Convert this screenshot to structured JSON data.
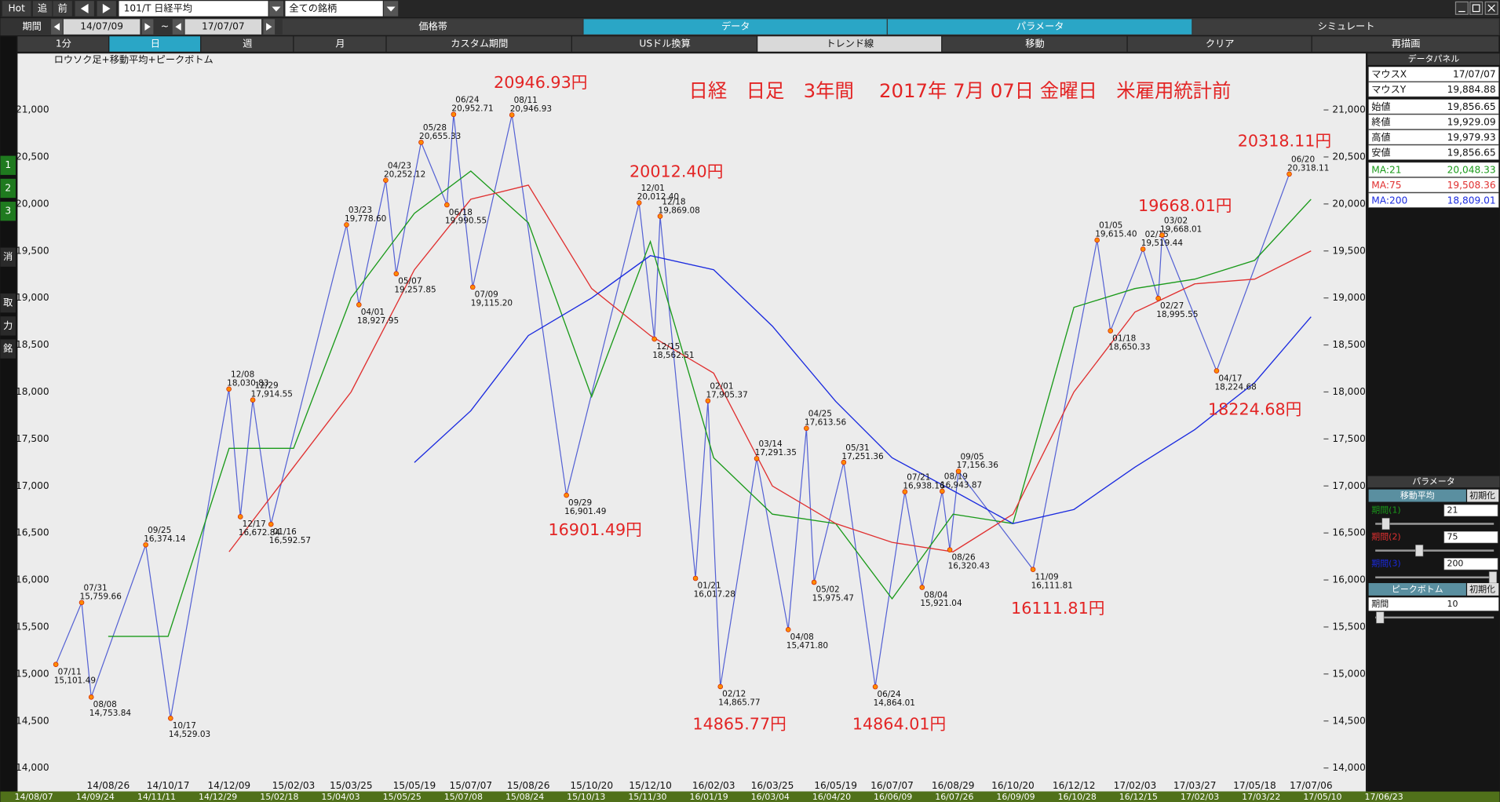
{
  "toolbar": {
    "buttons": [
      "Hot",
      "追",
      "前"
    ],
    "symbol": "101/T 日経平均",
    "universe": "全ての銘柄"
  },
  "period": {
    "label": "期間",
    "from": "14/07/09",
    "sep": "~",
    "to": "17/07/07"
  },
  "tabs": [
    "価格帯",
    "データ",
    "パラメータ",
    "シミュレート"
  ],
  "buttons": [
    "1分",
    "日",
    "週",
    "月",
    "カスタム期間",
    "USドル換算",
    "トレンド線",
    "移動",
    "クリア",
    "再描画"
  ],
  "sidebar": [
    "1",
    "2",
    "3",
    "消",
    "取",
    "力",
    "銘"
  ],
  "chart_data": {
    "type": "line",
    "label": "ロウソク足+移動平均+ピークボトム",
    "title": "日経　日足　3年間　 2017年 7月 07日 金曜日　米雇用統計前",
    "categories": [
      "14/08/26",
      "14/10/17",
      "14/12/09",
      "15/02/03",
      "15/03/25",
      "15/05/19",
      "15/07/07",
      "15/08/26",
      "15/10/20",
      "15/12/10",
      "16/02/03",
      "16/03/25",
      "16/05/19",
      "16/07/07",
      "16/08/29",
      "16/10/20",
      "16/12/12",
      "17/02/03",
      "17/03/27",
      "17/05/18",
      "17/07/06"
    ],
    "series": [
      {
        "name": "MA:21",
        "color": "#1a9a1a",
        "values": [
          15400,
          15400,
          17400,
          17400,
          19000,
          19900,
          20350,
          19800,
          17950,
          19600,
          17300,
          16700,
          16600,
          15800,
          16700,
          16600,
          18900,
          19100,
          19200,
          19400,
          20050
        ]
      },
      {
        "name": "MA:75",
        "color": "#e03030",
        "values": [
          null,
          null,
          16300,
          17200,
          18000,
          19300,
          20050,
          20200,
          19100,
          18600,
          18200,
          17000,
          16600,
          16400,
          16300,
          16700,
          18000,
          18850,
          19150,
          19200,
          19500
        ]
      },
      {
        "name": "MA:200",
        "color": "#1a2adf",
        "values": [
          null,
          null,
          null,
          null,
          null,
          17250,
          17800,
          18600,
          19000,
          19450,
          19300,
          18700,
          17900,
          17300,
          16950,
          16600,
          16750,
          17200,
          17600,
          18100,
          18800
        ]
      }
    ],
    "ylim": [
      13750,
      21600
    ],
    "yticks": [
      {
        "value": 14000,
        "label": "14,000"
      },
      {
        "value": 14500,
        "label": "14,500"
      },
      {
        "value": 15000,
        "label": "15,000"
      },
      {
        "value": 15500,
        "label": "15,500"
      },
      {
        "value": 16000,
        "label": "16,000"
      },
      {
        "value": 16500,
        "label": "16,500"
      },
      {
        "value": 17000,
        "label": "17,000"
      },
      {
        "value": 17500,
        "label": "17,500"
      },
      {
        "value": 18000,
        "label": "18,000"
      },
      {
        "value": 18500,
        "label": "18,500"
      },
      {
        "value": 19000,
        "label": "19,000"
      },
      {
        "value": 19500,
        "label": "19,500"
      },
      {
        "value": 20000,
        "label": "20,000"
      },
      {
        "value": 20500,
        "label": "20,500"
      },
      {
        "value": 21000,
        "label": "21,000"
      }
    ],
    "grid": false,
    "peaks": {
      "dates": [
        "07/11",
        "07/31",
        "08/08",
        "09/25",
        "10/17",
        "12/08",
        "12/17",
        "12/29",
        "01/16",
        "03/23",
        "04/01",
        "04/23",
        "05/07",
        "05/28",
        "06/18",
        "06/24",
        "07/09",
        "08/11",
        "09/29",
        "12/01",
        "12/15",
        "12/18",
        "01/21",
        "02/01",
        "02/12",
        "03/14",
        "04/08",
        "04/25",
        "05/02",
        "05/31",
        "06/24",
        "07/21",
        "08/04",
        "08/19",
        "08/26",
        "09/05",
        "11/09",
        "01/05",
        "01/18",
        "02/15",
        "02/27",
        "03/02",
        "04/17",
        "06/20"
      ],
      "values": [
        15101.49,
        15759.66,
        14753.84,
        16374.14,
        14529.03,
        18030.83,
        16672.84,
        17914.55,
        16592.57,
        19778.6,
        18927.95,
        20252.12,
        19257.85,
        20655.33,
        19990.55,
        20952.71,
        19115.2,
        20946.93,
        16901.49,
        20012.4,
        18562.51,
        19869.08,
        16017.28,
        17905.37,
        14865.77,
        17291.35,
        15471.8,
        17613.56,
        15975.47,
        17251.36,
        14864.01,
        16938.16,
        15921.04,
        16943.87,
        16320.43,
        17156.36,
        16111.81,
        19615.4,
        18650.33,
        19519.44,
        18995.55,
        19668.01,
        18224.68,
        20318.11
      ],
      "value_labels": [
        "15,101.49",
        "15,759.66",
        "14,753.84",
        "16,374.14",
        "14,529.03",
        "18,030.83",
        "16,672.84",
        "17,914.55",
        "16,592.57",
        "19,778.60",
        "18,927.95",
        "20,252.12",
        "19,257.85",
        "20,655.33",
        "19,990.55",
        "20,952.71",
        "19,115.20",
        "20,946.93",
        "16,901.49",
        "20,012.40",
        "18,562.51",
        "19,869.08",
        "16,017.28",
        "17,905.37",
        "14,865.77",
        "17,291.35",
        "15,471.80",
        "17,613.56",
        "15,975.47",
        "17,251.36",
        "14,864.01",
        "16,938.16",
        "15,921.04",
        "16,943.87",
        "16,320.43",
        "17,156.36",
        "16,111.81",
        "19,615.40",
        "18,650.33",
        "19,519.44",
        "18,995.55",
        "19,668.01",
        "18,224.68",
        "20,318.11"
      ]
    },
    "callouts": [
      "20946.93円",
      "20012.40円",
      "16901.49円",
      "14865.77円",
      "14864.01円",
      "16111.81円",
      "19668.01円",
      "20318.11円",
      "18224.68円"
    ],
    "nav_dates": [
      "14/08/07",
      "14/09/24",
      "14/11/11",
      "14/12/29",
      "15/02/18",
      "15/04/03",
      "15/05/25",
      "15/07/08",
      "15/08/24",
      "15/10/13",
      "15/11/30",
      "16/01/19",
      "16/03/04",
      "16/04/20",
      "16/06/09",
      "16/07/26",
      "16/09/09",
      "16/10/28",
      "16/12/15",
      "17/02/03",
      "17/03/22",
      "17/05/10",
      "17/06/23"
    ]
  },
  "data_panel": {
    "title": "データパネル",
    "rows": [
      {
        "label": "マウスX",
        "value": "17/07/07"
      },
      {
        "label": "マウスY",
        "value": "19,884.88"
      },
      {
        "label": "始値",
        "value": "19,856.65"
      },
      {
        "label": "終値",
        "value": "19,929.09"
      },
      {
        "label": "高値",
        "value": "19,979.93"
      },
      {
        "label": "安値",
        "value": "19,856.65"
      }
    ],
    "ma_values": [
      "20,048.33",
      "19,508.36",
      "18,809.01"
    ]
  },
  "parameters": {
    "title": "パラメータ",
    "ma": {
      "title": "移動平均",
      "reset": "初期化",
      "periods": [
        {
          "label": "期間(1)",
          "value": 21
        },
        {
          "label": "期間(2)",
          "value": 75
        },
        {
          "label": "期間(3)",
          "value": 200
        }
      ]
    },
    "peak_bottom": {
      "title": "ピークボトム",
      "reset": "初期化",
      "period": {
        "label": "期間",
        "value": 10
      }
    }
  }
}
